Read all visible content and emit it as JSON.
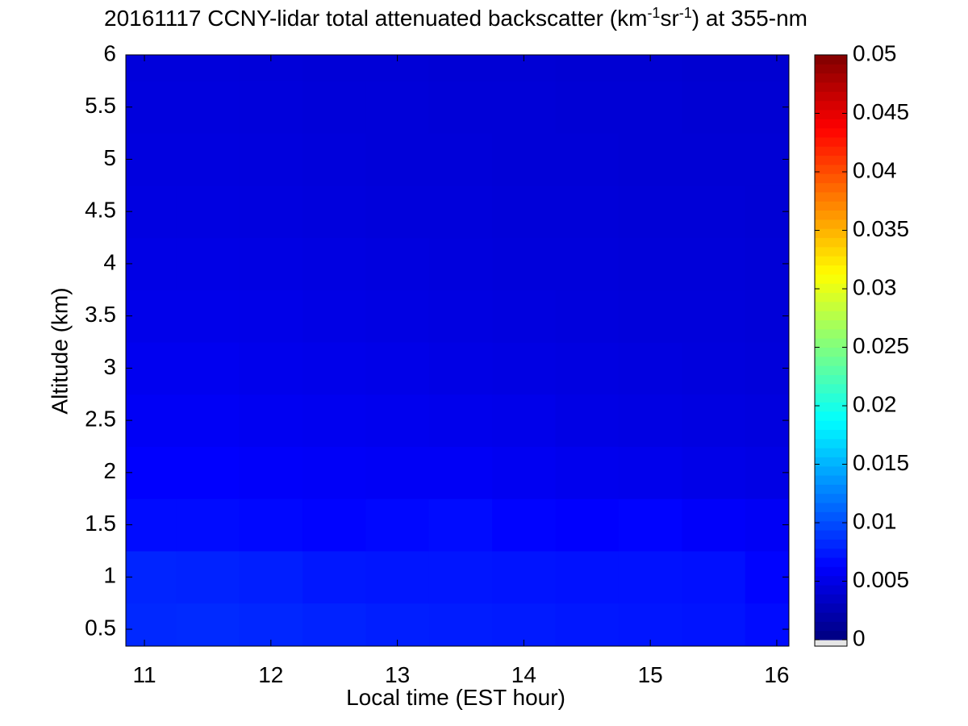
{
  "chart_data": {
    "type": "heatmap",
    "title_parts": [
      "20161117 CCNY-lidar total attenuated backscatter (km",
      "-1",
      "sr",
      "-1",
      ") at 355-nm"
    ],
    "xlabel": "Local time (EST hour)",
    "ylabel": "Altitude (km)",
    "x": [
      11,
      11.5,
      12,
      12.5,
      13,
      13.5,
      14,
      14.5,
      15,
      15.5,
      16
    ],
    "y": [
      0.5,
      1,
      1.5,
      2,
      2.5,
      3,
      3.5,
      4,
      4.5,
      5,
      5.5,
      6
    ],
    "z": [
      [
        0.0082,
        0.0083,
        0.0081,
        0.0079,
        0.0077,
        0.0076,
        0.0075,
        0.0074,
        0.0073,
        0.0072,
        0.0068
      ],
      [
        0.008,
        0.0079,
        0.0077,
        0.0074,
        0.0073,
        0.0073,
        0.0072,
        0.0071,
        0.0071,
        0.007,
        0.0064
      ],
      [
        0.0068,
        0.0068,
        0.0066,
        0.0064,
        0.0066,
        0.0068,
        0.0064,
        0.0062,
        0.0064,
        0.006,
        0.0058
      ],
      [
        0.0062,
        0.0062,
        0.006,
        0.0059,
        0.0058,
        0.0058,
        0.0056,
        0.0054,
        0.0053,
        0.0051,
        0.005
      ],
      [
        0.0058,
        0.0058,
        0.0056,
        0.0055,
        0.0054,
        0.0053,
        0.0052,
        0.005,
        0.0049,
        0.0048,
        0.0047
      ],
      [
        0.0055,
        0.0055,
        0.0053,
        0.0052,
        0.0051,
        0.005,
        0.0049,
        0.0048,
        0.0047,
        0.0046,
        0.0045
      ],
      [
        0.0052,
        0.0052,
        0.0051,
        0.005,
        0.0049,
        0.0048,
        0.0047,
        0.0046,
        0.0045,
        0.0045,
        0.0044
      ],
      [
        0.005,
        0.005,
        0.0049,
        0.0048,
        0.0047,
        0.0046,
        0.0045,
        0.0045,
        0.0044,
        0.0044,
        0.0043
      ],
      [
        0.0048,
        0.0048,
        0.0047,
        0.0046,
        0.0045,
        0.0045,
        0.0044,
        0.0044,
        0.0043,
        0.0043,
        0.0042
      ],
      [
        0.0047,
        0.0047,
        0.0046,
        0.0045,
        0.0044,
        0.0044,
        0.0043,
        0.0043,
        0.0042,
        0.0042,
        0.0042
      ],
      [
        0.0046,
        0.0046,
        0.0045,
        0.0044,
        0.0044,
        0.0043,
        0.0043,
        0.0042,
        0.0042,
        0.0041,
        0.0041
      ],
      [
        0.0045,
        0.0045,
        0.0044,
        0.0043,
        0.0043,
        0.0042,
        0.0042,
        0.0041,
        0.0041,
        0.004,
        0.004
      ]
    ],
    "xlim": [
      10.853,
      16.096
    ],
    "xticks": [
      11,
      12,
      13,
      14,
      15,
      16
    ],
    "ylim": [
      0.338,
      6
    ],
    "yticks": [
      0.5,
      1,
      1.5,
      2,
      2.5,
      3,
      3.5,
      4,
      4.5,
      5,
      5.5,
      6
    ],
    "colormap": "jet",
    "clim": [
      0,
      0.05
    ],
    "colorbar_lim": [
      -0.00055,
      0.05
    ],
    "colorbar_ticks": [
      0,
      0.005,
      0.01,
      0.015,
      0.02,
      0.025,
      0.03,
      0.035,
      0.04,
      0.045,
      0.05
    ],
    "below_color": "#e6e6e6"
  }
}
